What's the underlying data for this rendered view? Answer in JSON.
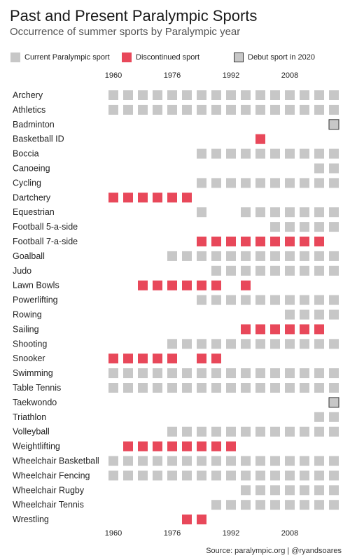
{
  "title": "Past and Present Paralympic Sports",
  "subtitle": "Occurrence of summer sports by Paralympic year",
  "legend": [
    {
      "label": "Current Paralympic sport",
      "color": "#c7c7c7",
      "status": "current"
    },
    {
      "label": "Discontinued sport",
      "color": "#e8485a",
      "status": "discontinued"
    },
    {
      "label": "Debut sport in 2020",
      "color": "#c7c7c7",
      "status": "debut"
    }
  ],
  "source": "Source: paralympic.org | @ryandsoares",
  "chart_data": {
    "type": "heatmap",
    "years": [
      1960,
      1964,
      1968,
      1972,
      1976,
      1980,
      1984,
      1988,
      1992,
      1996,
      2000,
      2004,
      2008,
      2012,
      2016,
      2020
    ],
    "tick_labels": [
      "1960",
      "1976",
      "1992",
      "2008"
    ],
    "tick_years": [
      1960,
      1976,
      1992,
      2008
    ],
    "colors": {
      "current": "#c7c7c7",
      "discontinued": "#e8485a",
      "debut": "#c7c7c7"
    },
    "sports": [
      {
        "name": "Archery",
        "status": "current",
        "years": [
          1960,
          1964,
          1968,
          1972,
          1976,
          1980,
          1984,
          1988,
          1992,
          1996,
          2000,
          2004,
          2008,
          2012,
          2016,
          2020
        ]
      },
      {
        "name": "Athletics",
        "status": "current",
        "years": [
          1960,
          1964,
          1968,
          1972,
          1976,
          1980,
          1984,
          1988,
          1992,
          1996,
          2000,
          2004,
          2008,
          2012,
          2016,
          2020
        ]
      },
      {
        "name": "Badminton",
        "status": "debut",
        "years": [
          2020
        ]
      },
      {
        "name": "Basketball ID",
        "status": "discontinued",
        "years": [
          2000
        ]
      },
      {
        "name": "Boccia",
        "status": "current",
        "years": [
          1984,
          1988,
          1992,
          1996,
          2000,
          2004,
          2008,
          2012,
          2016,
          2020
        ]
      },
      {
        "name": "Canoeing",
        "status": "current",
        "years": [
          2016,
          2020
        ]
      },
      {
        "name": "Cycling",
        "status": "current",
        "years": [
          1984,
          1988,
          1992,
          1996,
          2000,
          2004,
          2008,
          2012,
          2016,
          2020
        ]
      },
      {
        "name": "Dartchery",
        "status": "discontinued",
        "years": [
          1960,
          1964,
          1968,
          1972,
          1976,
          1980
        ]
      },
      {
        "name": "Equestrian",
        "status": "current",
        "years": [
          1984,
          1996,
          2000,
          2004,
          2008,
          2012,
          2016,
          2020
        ]
      },
      {
        "name": "Football 5-a-side",
        "status": "current",
        "years": [
          2004,
          2008,
          2012,
          2016,
          2020
        ]
      },
      {
        "name": "Football 7-a-side",
        "status": "discontinued",
        "years": [
          1984,
          1988,
          1992,
          1996,
          2000,
          2004,
          2008,
          2012,
          2016
        ]
      },
      {
        "name": "Goalball",
        "status": "current",
        "years": [
          1976,
          1980,
          1984,
          1988,
          1992,
          1996,
          2000,
          2004,
          2008,
          2012,
          2016,
          2020
        ]
      },
      {
        "name": "Judo",
        "status": "current",
        "years": [
          1988,
          1992,
          1996,
          2000,
          2004,
          2008,
          2012,
          2016,
          2020
        ]
      },
      {
        "name": "Lawn Bowls",
        "status": "discontinued",
        "years": [
          1968,
          1972,
          1976,
          1980,
          1984,
          1988,
          1996
        ]
      },
      {
        "name": "Powerlifting",
        "status": "current",
        "years": [
          1984,
          1988,
          1992,
          1996,
          2000,
          2004,
          2008,
          2012,
          2016,
          2020
        ]
      },
      {
        "name": "Rowing",
        "status": "current",
        "years": [
          2008,
          2012,
          2016,
          2020
        ]
      },
      {
        "name": "Sailing",
        "status": "discontinued",
        "years": [
          1996,
          2000,
          2004,
          2008,
          2012,
          2016
        ]
      },
      {
        "name": "Shooting",
        "status": "current",
        "years": [
          1976,
          1980,
          1984,
          1988,
          1992,
          1996,
          2000,
          2004,
          2008,
          2012,
          2016,
          2020
        ]
      },
      {
        "name": "Snooker",
        "status": "discontinued",
        "years": [
          1960,
          1964,
          1968,
          1972,
          1976,
          1984,
          1988
        ]
      },
      {
        "name": "Swimming",
        "status": "current",
        "years": [
          1960,
          1964,
          1968,
          1972,
          1976,
          1980,
          1984,
          1988,
          1992,
          1996,
          2000,
          2004,
          2008,
          2012,
          2016,
          2020
        ]
      },
      {
        "name": "Table Tennis",
        "status": "current",
        "years": [
          1960,
          1964,
          1968,
          1972,
          1976,
          1980,
          1984,
          1988,
          1992,
          1996,
          2000,
          2004,
          2008,
          2012,
          2016,
          2020
        ]
      },
      {
        "name": "Taekwondo",
        "status": "debut",
        "years": [
          2020
        ]
      },
      {
        "name": "Triathlon",
        "status": "current",
        "years": [
          2016,
          2020
        ]
      },
      {
        "name": "Volleyball",
        "status": "current",
        "years": [
          1976,
          1980,
          1984,
          1988,
          1992,
          1996,
          2000,
          2004,
          2008,
          2012,
          2016,
          2020
        ]
      },
      {
        "name": "Weightlifting",
        "status": "discontinued",
        "years": [
          1964,
          1968,
          1972,
          1976,
          1980,
          1984,
          1988,
          1992
        ]
      },
      {
        "name": "Wheelchair Basketball",
        "status": "current",
        "years": [
          1960,
          1964,
          1968,
          1972,
          1976,
          1980,
          1984,
          1988,
          1992,
          1996,
          2000,
          2004,
          2008,
          2012,
          2016,
          2020
        ]
      },
      {
        "name": "Wheelchair Fencing",
        "status": "current",
        "years": [
          1960,
          1964,
          1968,
          1972,
          1976,
          1980,
          1984,
          1988,
          1992,
          1996,
          2000,
          2004,
          2008,
          2012,
          2016,
          2020
        ]
      },
      {
        "name": "Wheelchair Rugby",
        "status": "current",
        "years": [
          1996,
          2000,
          2004,
          2008,
          2012,
          2016,
          2020
        ]
      },
      {
        "name": "Wheelchair Tennis",
        "status": "current",
        "years": [
          1988,
          1992,
          1996,
          2000,
          2004,
          2008,
          2012,
          2016,
          2020
        ]
      },
      {
        "name": "Wrestling",
        "status": "discontinued",
        "years": [
          1980,
          1984
        ]
      }
    ]
  }
}
